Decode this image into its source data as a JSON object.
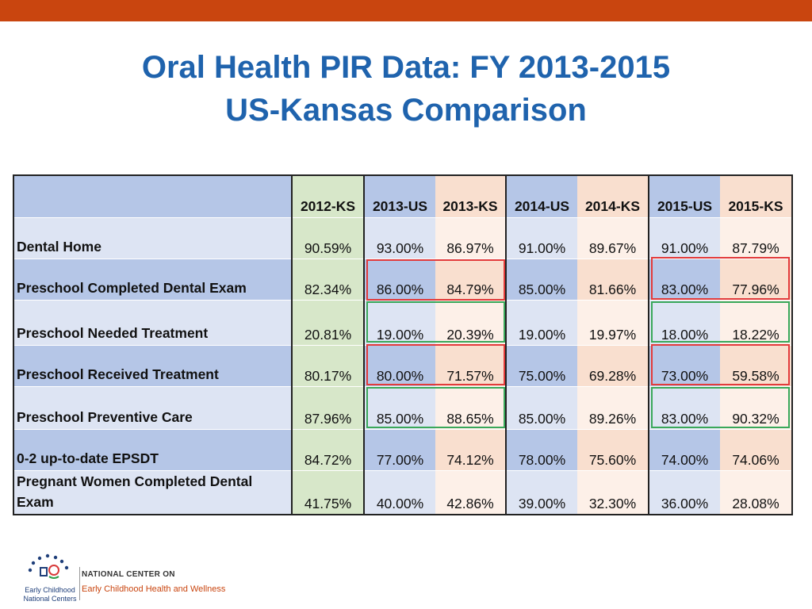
{
  "title": {
    "line1": "Oral Health PIR Data: FY 2013-2015",
    "line2": "US-Kansas Comparison"
  },
  "table": {
    "columns": [
      "2012-KS",
      "2013-US",
      "2013-KS",
      "2014-US",
      "2014-KS",
      "2015-US",
      "2015-KS"
    ],
    "rows": [
      {
        "label": "Dental Home",
        "values": [
          "90.59%",
          "93.00%",
          "86.97%",
          "91.00%",
          "89.67%",
          "91.00%",
          "87.79%"
        ]
      },
      {
        "label": "Preschool Completed Dental Exam",
        "values": [
          "82.34%",
          "86.00%",
          "84.79%",
          "85.00%",
          "81.66%",
          "83.00%",
          "77.96%"
        ]
      },
      {
        "label": "Preschool Needed Treatment",
        "values": [
          "20.81%",
          "19.00%",
          "20.39%",
          "19.00%",
          "19.97%",
          "18.00%",
          "18.22%"
        ]
      },
      {
        "label": "Preschool Received Treatment",
        "values": [
          "80.17%",
          "80.00%",
          "71.57%",
          "75.00%",
          "69.28%",
          "73.00%",
          "59.58%"
        ]
      },
      {
        "label": "Preschool Preventive Care",
        "values": [
          "87.96%",
          "85.00%",
          "88.65%",
          "85.00%",
          "89.26%",
          "83.00%",
          "90.32%"
        ]
      },
      {
        "label": "0-2 up-to-date EPSDT",
        "values": [
          "84.72%",
          "77.00%",
          "74.12%",
          "78.00%",
          "75.60%",
          "74.00%",
          "74.06%"
        ]
      },
      {
        "label": "Pregnant Women Completed Dental Exam",
        "values": [
          "41.75%",
          "40.00%",
          "42.86%",
          "39.00%",
          "32.30%",
          "36.00%",
          "28.08%"
        ]
      }
    ]
  },
  "logo": {
    "org_top": "NATIONAL CENTER ON",
    "org_bottom": "Early Childhood Health and Wellness",
    "ecnc_line1": "Early Childhood",
    "ecnc_line2": "National Centers"
  },
  "colors": {
    "accent_bar": "#c9450f",
    "title": "#1f63ad",
    "us_col": "#b5c6e7",
    "ks_col": "#f9dfcf",
    "ks2012_col": "#d7e7c9",
    "highlight_worse": "#e23b3b",
    "highlight_better": "#3aa85a"
  }
}
